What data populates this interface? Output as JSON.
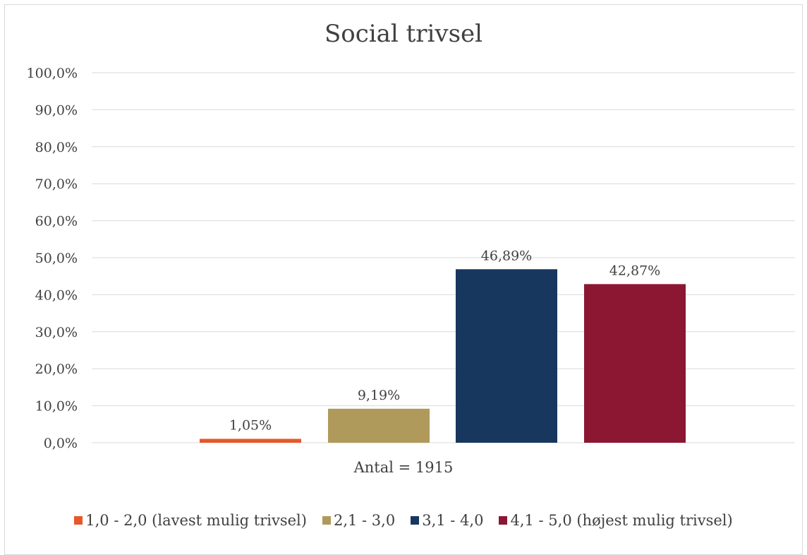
{
  "chart_data": {
    "type": "bar",
    "title": "Social trivsel",
    "xlabel": "Antal = 1915",
    "ylabel": "",
    "ylim": [
      0,
      100
    ],
    "ytick_labels": [
      "0,0%",
      "10,0%",
      "20,0%",
      "30,0%",
      "40,0%",
      "50,0%",
      "60,0%",
      "70,0%",
      "80,0%",
      "90,0%",
      "100,0%"
    ],
    "grid": true,
    "legend_position": "bottom",
    "series": [
      {
        "name": "1,0 - 2,0 (lavest mulig trivsel)",
        "value": 1.05,
        "label": "1,05%",
        "color": "#e8572a"
      },
      {
        "name": "2,1 - 3,0",
        "value": 9.19,
        "label": "9,19%",
        "color": "#b09a5b"
      },
      {
        "name": "3,1 - 4,0",
        "value": 46.89,
        "label": "46,89%",
        "color": "#17375e"
      },
      {
        "name": "4,1 - 5,0 (højest mulig trivsel)",
        "value": 42.87,
        "label": "42,87%",
        "color": "#8b1732"
      }
    ]
  }
}
